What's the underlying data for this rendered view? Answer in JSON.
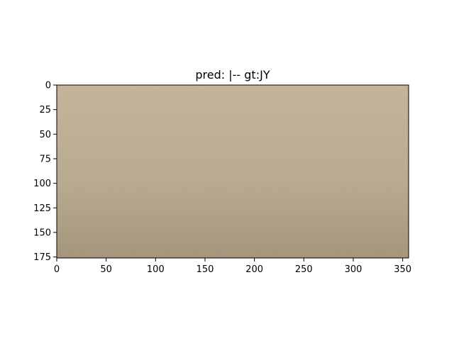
{
  "chart_data": {
    "type": "heatmap",
    "title": "pred: |-- gt:JY",
    "xlabel": "",
    "ylabel": "",
    "xlim": [
      0,
      356
    ],
    "ylim": [
      176,
      0
    ],
    "x_ticks": [
      0,
      50,
      100,
      150,
      200,
      250,
      300,
      350
    ],
    "y_ticks": [
      0,
      25,
      50,
      75,
      100,
      125,
      150,
      175
    ],
    "grid": false,
    "image_colors": {
      "top": "#c4b498",
      "middle": "#b9aa8e",
      "bottom": "#a39479",
      "shadow_left": "#8f8168"
    }
  }
}
